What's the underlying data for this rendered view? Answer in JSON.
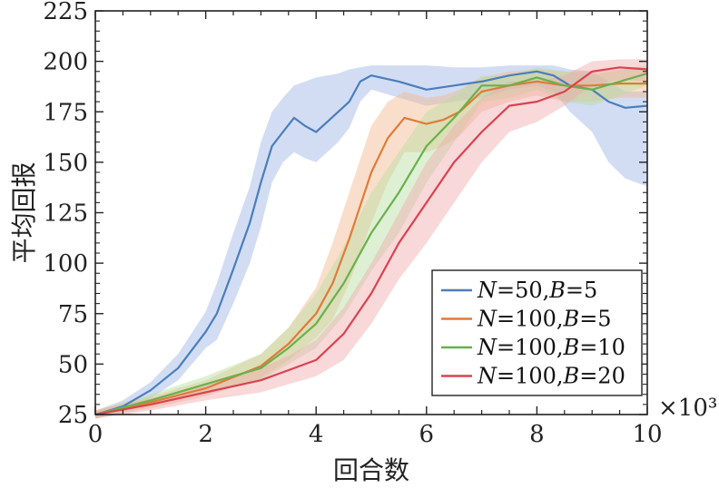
{
  "chart_data": {
    "type": "line",
    "title": "",
    "xlabel": "回合数",
    "ylabel": "平均回报",
    "x_multiplier_label": "×10³",
    "xlim": [
      0,
      10
    ],
    "ylim": [
      25,
      225
    ],
    "xticks": [
      0,
      2,
      4,
      6,
      8,
      10
    ],
    "yticks": [
      25,
      50,
      75,
      100,
      125,
      150,
      175,
      200,
      225
    ],
    "legend_position": "lower-right",
    "series": [
      {
        "name": "N=50,B=5",
        "legend_parts": [
          [
            "N",
            true
          ],
          [
            "=50,",
            false
          ],
          [
            "B",
            true
          ],
          [
            "=5",
            false
          ]
        ],
        "color": "#4a7ebb",
        "band_color": "#9cb4e4",
        "x": [
          0,
          0.5,
          1,
          1.5,
          2,
          2.2,
          2.5,
          2.8,
          3,
          3.2,
          3.4,
          3.6,
          3.8,
          4,
          4.2,
          4.4,
          4.6,
          4.8,
          5,
          5.5,
          6,
          6.5,
          7,
          7.5,
          8,
          8.3,
          8.6,
          9,
          9.3,
          9.6,
          10
        ],
        "y": [
          25,
          29,
          37,
          48,
          66,
          75,
          97,
          120,
          140,
          158,
          165,
          172,
          168,
          165,
          170,
          175,
          180,
          190,
          193,
          190,
          186,
          188,
          190,
          193,
          195,
          193,
          188,
          186,
          180,
          177,
          178
        ],
        "upper": [
          27,
          32,
          41,
          55,
          76,
          90,
          115,
          138,
          160,
          175,
          182,
          188,
          190,
          192,
          193,
          194,
          196,
          197,
          198,
          198,
          198,
          197,
          197,
          198,
          198,
          198,
          196,
          195,
          190,
          185,
          185
        ],
        "lower": [
          23,
          26,
          33,
          42,
          58,
          62,
          80,
          100,
          118,
          140,
          150,
          155,
          152,
          150,
          155,
          160,
          167,
          180,
          186,
          182,
          178,
          180,
          182,
          186,
          188,
          185,
          175,
          165,
          150,
          142,
          138
        ]
      },
      {
        "name": "N=100,B=5",
        "legend_parts": [
          [
            "N",
            true
          ],
          [
            "=100,",
            false
          ],
          [
            "B",
            true
          ],
          [
            "=5",
            false
          ]
        ],
        "color": "#e07b39",
        "band_color": "#f1b98c",
        "x": [
          0,
          1,
          2,
          3,
          3.5,
          4,
          4.3,
          4.6,
          5,
          5.3,
          5.6,
          6,
          6.3,
          6.6,
          7,
          7.5,
          8,
          8.5,
          9,
          9.5,
          10
        ],
        "y": [
          25,
          31,
          38,
          49,
          60,
          75,
          90,
          112,
          145,
          162,
          172,
          169,
          171,
          175,
          185,
          188,
          190,
          188,
          188,
          189,
          189
        ],
        "upper": [
          27,
          34,
          42,
          55,
          68,
          88,
          110,
          135,
          168,
          180,
          185,
          182,
          183,
          186,
          192,
          195,
          196,
          195,
          195,
          196,
          196
        ],
        "lower": [
          23,
          28,
          34,
          43,
          52,
          63,
          72,
          90,
          120,
          140,
          155,
          155,
          158,
          163,
          175,
          180,
          183,
          180,
          180,
          182,
          182
        ]
      },
      {
        "name": "N=100,B=10",
        "legend_parts": [
          [
            "N",
            true
          ],
          [
            "=100,",
            false
          ],
          [
            "B",
            true
          ],
          [
            "=10",
            false
          ]
        ],
        "color": "#6ab04c",
        "band_color": "#b5dda0",
        "x": [
          0,
          1,
          2,
          3,
          3.5,
          4,
          4.5,
          5,
          5.5,
          6,
          6.5,
          7,
          7.5,
          8,
          8.5,
          9,
          9.5,
          10
        ],
        "y": [
          25,
          32,
          40,
          48,
          58,
          70,
          90,
          115,
          135,
          158,
          172,
          188,
          188,
          192,
          188,
          186,
          190,
          194
        ],
        "upper": [
          27,
          35,
          44,
          55,
          68,
          85,
          108,
          135,
          155,
          175,
          183,
          193,
          193,
          197,
          195,
          193,
          196,
          198
        ],
        "lower": [
          23,
          29,
          36,
          42,
          50,
          58,
          74,
          96,
          115,
          140,
          160,
          180,
          182,
          186,
          180,
          178,
          183,
          188
        ]
      },
      {
        "name": "N=100,B=20",
        "legend_parts": [
          [
            "N",
            true
          ],
          [
            "=100,",
            false
          ],
          [
            "B",
            true
          ],
          [
            "=20",
            false
          ]
        ],
        "color": "#d9434f",
        "band_color": "#f0a8aa",
        "x": [
          0,
          1,
          2,
          3,
          3.5,
          4,
          4.5,
          5,
          5.5,
          6,
          6.5,
          7,
          7.5,
          8,
          8.5,
          9,
          9.5,
          10
        ],
        "y": [
          25,
          30,
          36,
          42,
          47,
          52,
          65,
          85,
          110,
          130,
          150,
          165,
          178,
          180,
          185,
          195,
          197,
          196
        ],
        "upper": [
          27,
          33,
          40,
          48,
          54,
          62,
          78,
          100,
          125,
          150,
          168,
          182,
          190,
          190,
          193,
          200,
          201,
          201
        ],
        "lower": [
          23,
          27,
          32,
          36,
          40,
          44,
          52,
          70,
          92,
          110,
          130,
          150,
          165,
          170,
          178,
          188,
          191,
          190
        ]
      }
    ]
  }
}
